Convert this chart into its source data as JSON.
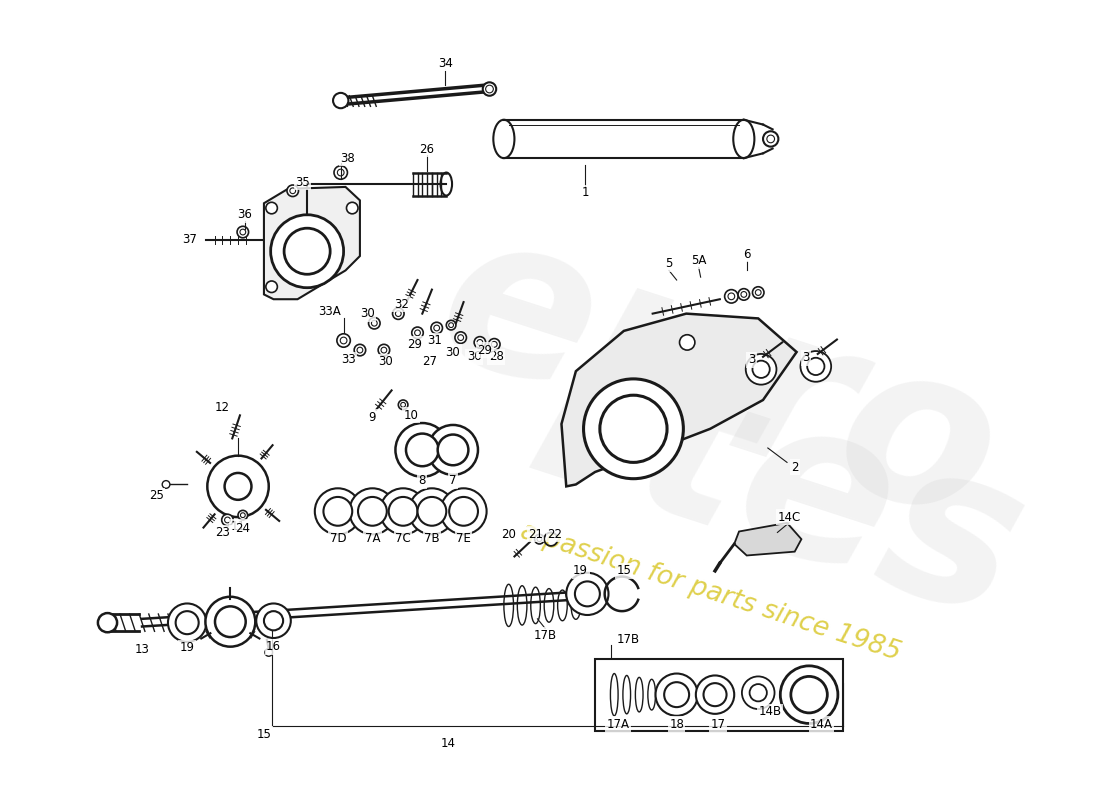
{
  "bg_color": "#ffffff",
  "lc": "#1a1a1a",
  "fig_w": 11.0,
  "fig_h": 8.0,
  "dpi": 100,
  "wm1": "euro",
  "wm2": "rtes",
  "wm3": "a passion for parts since 1985",
  "wm_color": "#c8c8c8",
  "wm_yellow": "#d4c010"
}
